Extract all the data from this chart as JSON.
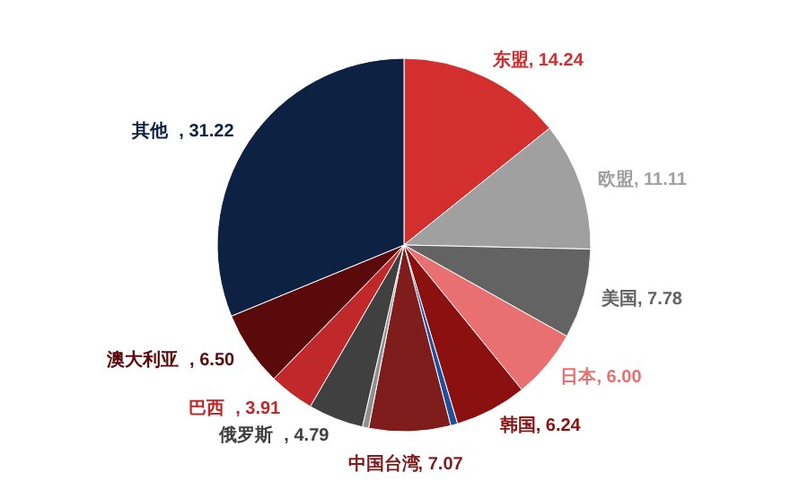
{
  "chart_data": {
    "type": "pie",
    "categories": [
      "东盟",
      "欧盟",
      "美国",
      "日本",
      "韩国",
      null,
      "中国台湾",
      null,
      "俄罗斯",
      "巴西",
      "澳大利亚",
      "其他"
    ],
    "values": [
      14.24,
      11.11,
      7.78,
      6.0,
      6.24,
      0.6,
      7.07,
      0.54,
      4.79,
      3.91,
      6.5,
      31.22
    ],
    "value_labels": [
      ", 14.24",
      ", 11.11",
      ", 7.78",
      ", 6.00",
      ", 6.24",
      null,
      ", 7.07",
      null,
      ", 4.79",
      ", 3.91",
      ", 6.50",
      ", 31.22"
    ],
    "colors": [
      "#d32f2f",
      "#a0a0a0",
      "#636363",
      "#e87070",
      "#8b1010",
      "#1f4e9a",
      "#7f1d1d",
      "#909090",
      "#404040",
      "#c0282a",
      "#5a0a0a",
      "#0d2242"
    ],
    "legend": false
  }
}
